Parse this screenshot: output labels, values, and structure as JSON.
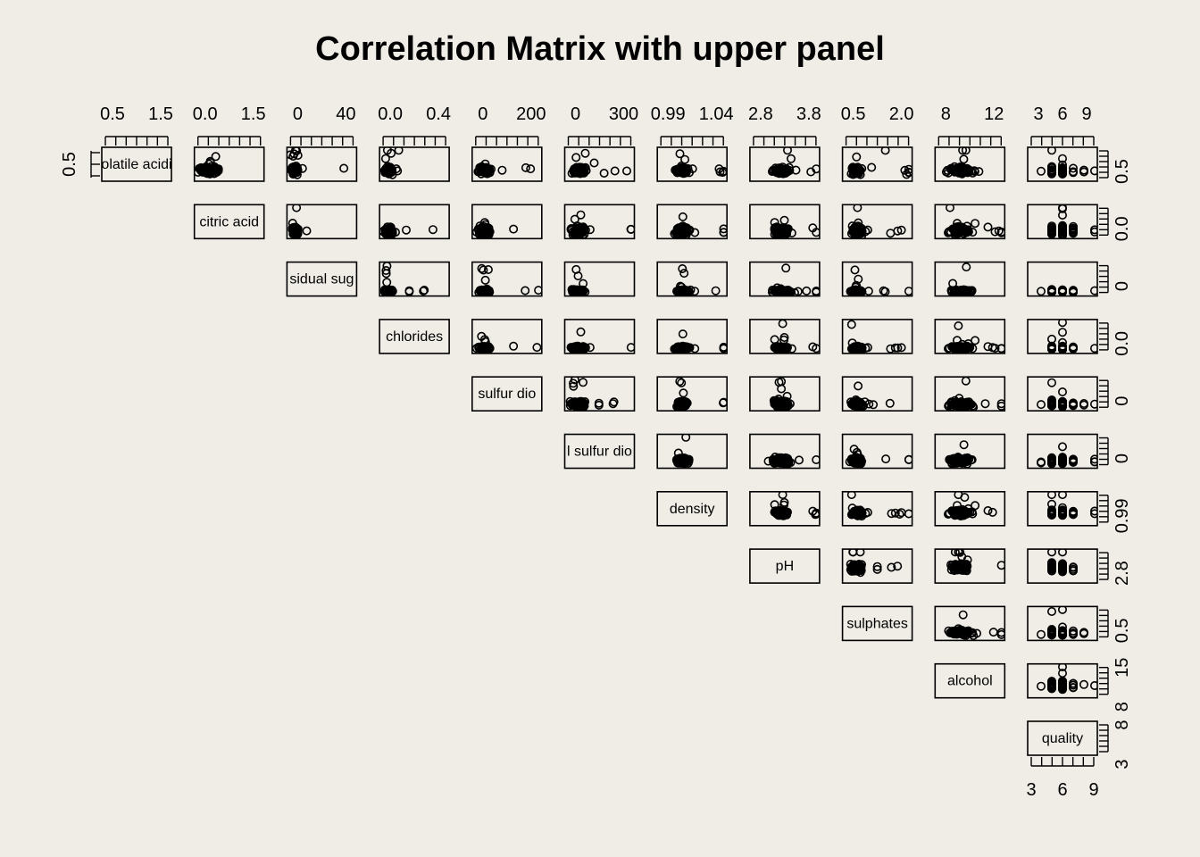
{
  "chart_data": {
    "type": "scatter",
    "subtype": "pairs-matrix-upper-panel",
    "title": "Correlation Matrix with upper panel",
    "variables": [
      "volatile acidity",
      "citric acid",
      "residual sugar",
      "chlorides",
      "free sulfur dioxide",
      "total sulfur dioxide",
      "density",
      "pH",
      "sulphates",
      "alcohol",
      "quality"
    ],
    "diagonal_labels_visible": [
      "olatile acidi",
      "citric acid",
      "sidual sug",
      "chlorides",
      "sulfur dio",
      "l sulfur dio",
      "density",
      "pH",
      "sulphates",
      "alcohol",
      "quality"
    ],
    "ranges": [
      [
        0.12,
        1.58
      ],
      [
        0.0,
        1.66
      ],
      [
        0.6,
        65.8
      ],
      [
        0.009,
        0.61
      ],
      [
        1,
        289
      ],
      [
        6,
        440
      ],
      [
        0.987,
        1.039
      ],
      [
        2.72,
        4.01
      ],
      [
        0.22,
        2.0
      ],
      [
        8.0,
        14.9
      ],
      [
        3,
        9
      ]
    ],
    "top_axis_ticks": [
      [
        "0.5",
        "1.5"
      ],
      [
        "0.0",
        "1.5"
      ],
      [
        "0",
        "40"
      ],
      [
        "0.0",
        "0.4"
      ],
      [
        "0",
        "200"
      ],
      [
        "0",
        "300"
      ],
      [
        "0.99",
        "1.04"
      ],
      [
        "2.8",
        "3.8"
      ],
      [
        "0.5",
        "2.0"
      ],
      [
        "8",
        "12"
      ],
      [
        "3",
        "6",
        "9"
      ]
    ],
    "right_axis_ticks": [
      [
        "0.5"
      ],
      [
        "0.0"
      ],
      [
        "0"
      ],
      [
        "0.0"
      ],
      [
        "0"
      ],
      [
        "0"
      ],
      [
        "0.99"
      ],
      [
        "2.8"
      ],
      [
        "0.5"
      ],
      [
        "15",
        "8"
      ],
      [
        "8",
        "3"
      ]
    ],
    "left_axis_ticks": [
      "0.5"
    ],
    "bottom_axis_ticks": [
      "3",
      "6",
      "9"
    ],
    "style": {
      "background": "#f0ede6",
      "ink": "#000000",
      "marker": "open-circle"
    }
  }
}
